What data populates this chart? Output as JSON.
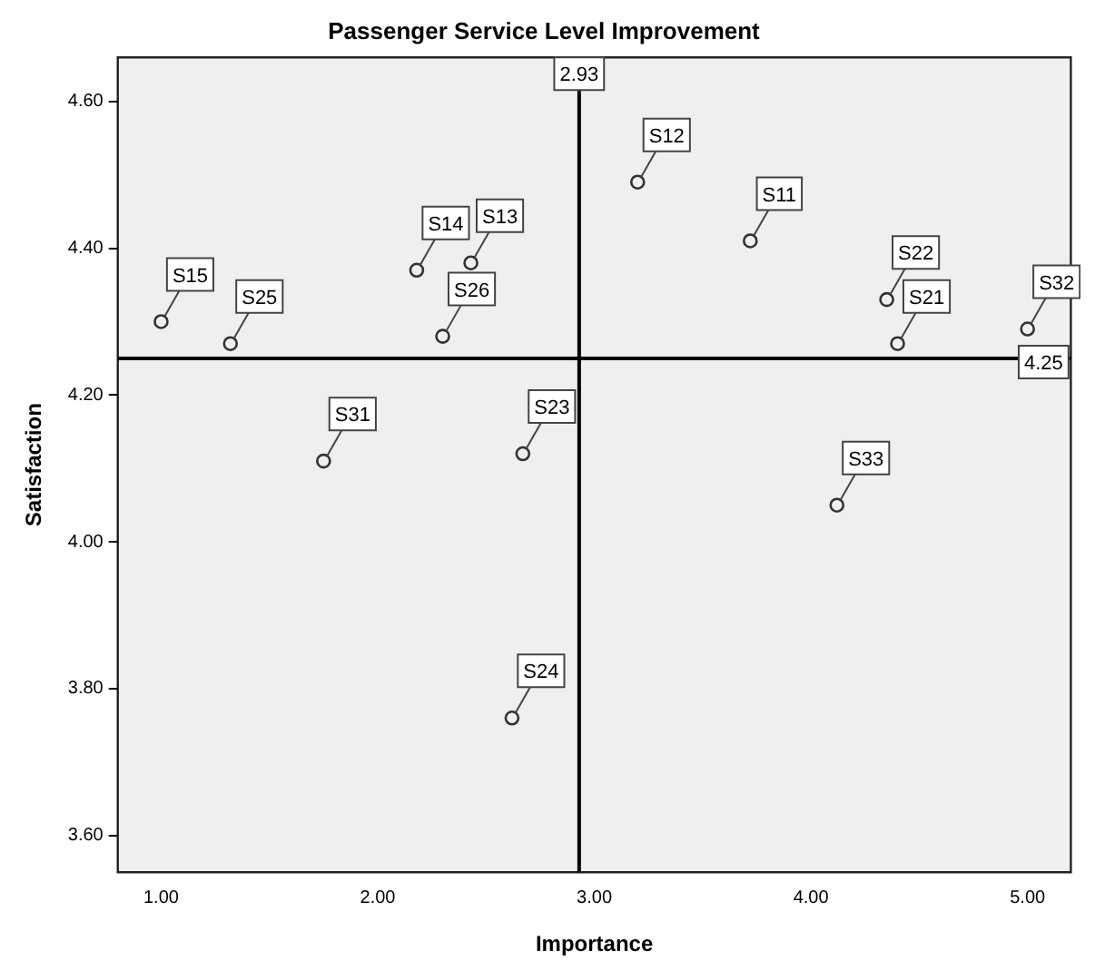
{
  "chart_data": {
    "type": "scatter",
    "title": "Passenger Service Level Improvement",
    "xlabel": "Importance",
    "ylabel": "Satisfaction",
    "x": [
      1.0,
      1.32,
      2.18,
      2.43,
      2.3,
      1.75,
      2.67,
      3.2,
      3.72,
      4.35,
      4.4,
      5.0,
      4.12,
      2.62
    ],
    "series": [
      {
        "color": "#333333",
        "values": [
          4.3,
          4.27,
          4.37,
          4.38,
          4.28,
          4.11,
          4.12,
          4.49,
          4.41,
          4.33,
          4.27,
          4.29,
          4.05,
          3.76
        ]
      }
    ],
    "xlim": [
      0.8,
      5.2
    ],
    "ylim": [
      3.55,
      4.66
    ],
    "xticks": [
      {
        "value": 1,
        "label": "1.00"
      },
      {
        "value": 2,
        "label": "2.00"
      },
      {
        "value": 3,
        "label": "3.00"
      },
      {
        "value": 4,
        "label": "4.00"
      },
      {
        "value": 5,
        "label": "5.00"
      }
    ],
    "yticks": [
      {
        "value": 3.6,
        "label": "3.60"
      },
      {
        "value": 3.8,
        "label": "3.80"
      },
      {
        "value": 4.0,
        "label": "4.00"
      },
      {
        "value": 4.2,
        "label": "4.20"
      },
      {
        "value": 4.4,
        "label": "4.40"
      },
      {
        "value": 4.6,
        "label": "4.60"
      }
    ],
    "ref_lines": [
      {
        "axis": "x",
        "value": 2.93,
        "label": "2.93",
        "color": "#000000"
      },
      {
        "axis": "y",
        "value": 4.25,
        "label": "4.25",
        "color": "#000000"
      }
    ],
    "annotations": [
      {
        "text": "S15",
        "x": 1.0,
        "y": 4.3
      },
      {
        "text": "S25",
        "x": 1.32,
        "y": 4.27
      },
      {
        "text": "S14",
        "x": 2.18,
        "y": 4.37
      },
      {
        "text": "S13",
        "x": 2.43,
        "y": 4.38
      },
      {
        "text": "S26",
        "x": 2.3,
        "y": 4.28
      },
      {
        "text": "S31",
        "x": 1.75,
        "y": 4.11
      },
      {
        "text": "S23",
        "x": 2.67,
        "y": 4.12
      },
      {
        "text": "S12",
        "x": 3.2,
        "y": 4.49
      },
      {
        "text": "S11",
        "x": 3.72,
        "y": 4.41
      },
      {
        "text": "S22",
        "x": 4.35,
        "y": 4.33
      },
      {
        "text": "S21",
        "x": 4.4,
        "y": 4.27
      },
      {
        "text": "S32",
        "x": 5.0,
        "y": 4.29
      },
      {
        "text": "S33",
        "x": 4.12,
        "y": 4.05
      },
      {
        "text": "S24",
        "x": 2.62,
        "y": 3.76
      }
    ],
    "marker": "circle",
    "grid": false,
    "legend": false
  }
}
